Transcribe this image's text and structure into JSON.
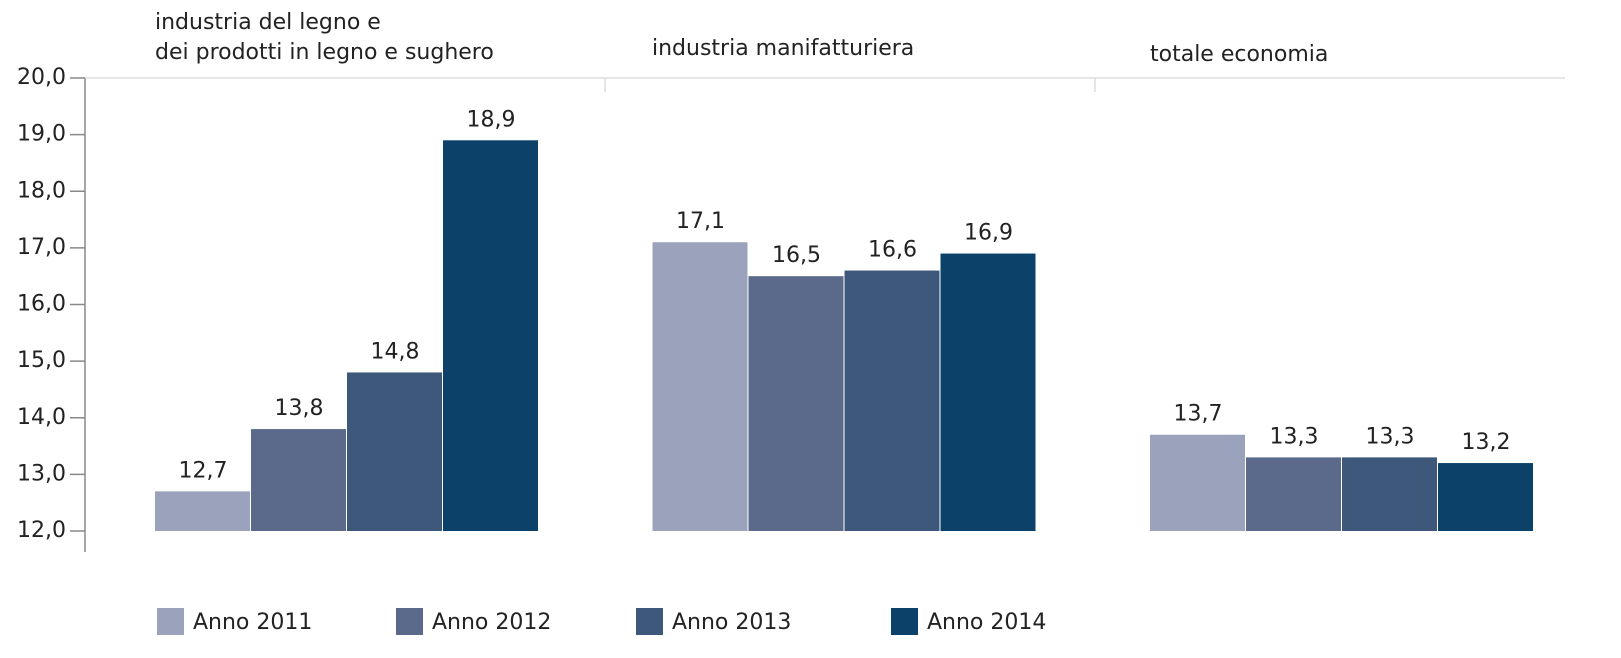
{
  "chart_data": {
    "type": "bar",
    "categories": [
      "industria del legno e\ndei prodotti in legno e sughero",
      "industria manifatturiera",
      "totale economia"
    ],
    "series": [
      {
        "name": "Anno 2011",
        "color": "#9aa3bb",
        "values": [
          12.7,
          17.1,
          13.7
        ],
        "value_labels": [
          "12,7",
          "17,1",
          "13,7"
        ]
      },
      {
        "name": "Anno 2012",
        "color": "#5b6a8b",
        "values": [
          13.8,
          16.5,
          13.3
        ],
        "value_labels": [
          "13,8",
          "16,5",
          "13,3"
        ]
      },
      {
        "name": "Anno 2013",
        "color": "#3e587c",
        "values": [
          14.8,
          16.6,
          13.3
        ],
        "value_labels": [
          "14,8",
          "16,6",
          "13,3"
        ]
      },
      {
        "name": "Anno 2014",
        "color": "#0c4269",
        "values": [
          18.9,
          16.9,
          13.2
        ],
        "value_labels": [
          "18,9",
          "16,9",
          "13,2"
        ]
      }
    ],
    "ylim": [
      12,
      20
    ],
    "yticks": [
      {
        "value": 12,
        "label": "12,0"
      },
      {
        "value": 13,
        "label": "13,0"
      },
      {
        "value": 14,
        "label": "14,0"
      },
      {
        "value": 15,
        "label": "15,0"
      },
      {
        "value": 16,
        "label": "16,0"
      },
      {
        "value": 17,
        "label": "17,0"
      },
      {
        "value": 18,
        "label": "18,0"
      },
      {
        "value": 19,
        "label": "19,0"
      },
      {
        "value": 20,
        "label": "20,0"
      }
    ],
    "grid": false
  }
}
